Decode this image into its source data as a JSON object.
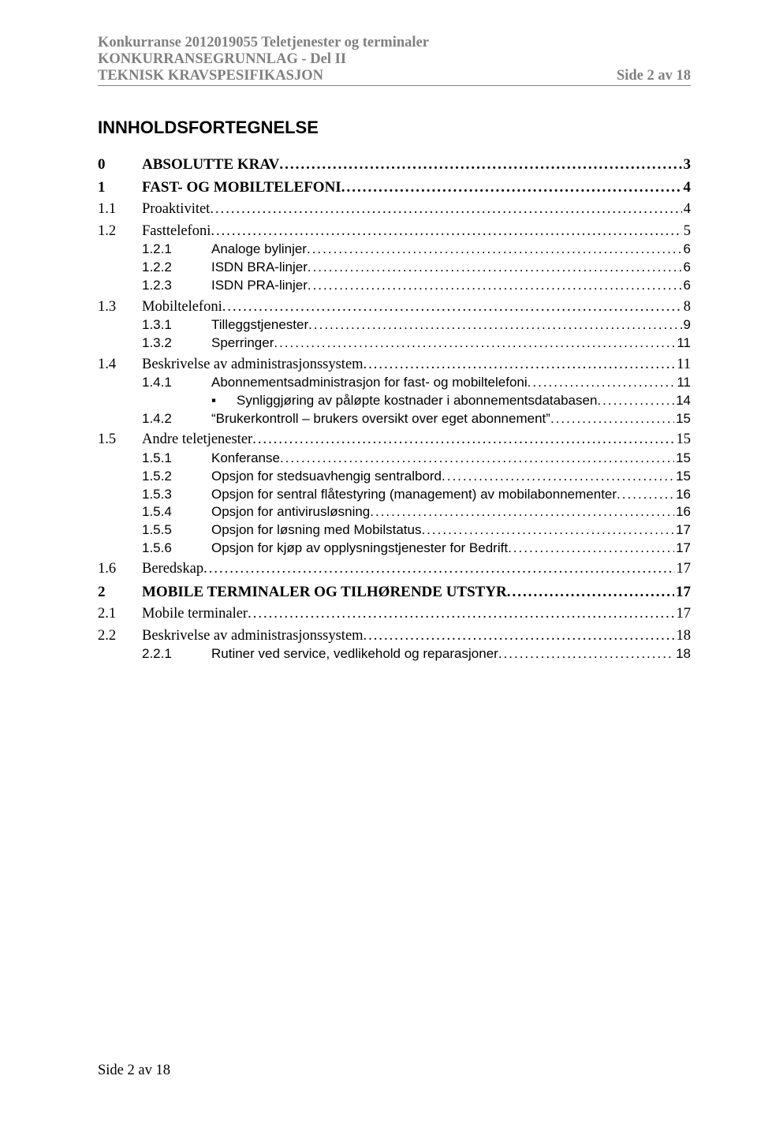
{
  "header": {
    "line1": "Konkurranse 2012019055 Teletjenester og terminaler",
    "line2": "KONKURRANSEGRUNNLAG - Del II",
    "line3": "TEKNISK KRAVSPESIFIKASJON",
    "page_label": "Side 2 av 18"
  },
  "title": "INNHOLDSFORTEGNELSE",
  "toc": [
    {
      "level": 0,
      "num": "0",
      "text": "ABSOLUTTE KRAV",
      "page": "3"
    },
    {
      "level": 0,
      "num": "1",
      "text": "FAST- OG MOBILTELEFONI",
      "page": "4"
    },
    {
      "level": 1,
      "num": "1.1",
      "text": "Proaktivitet",
      "page": "4"
    },
    {
      "level": 1,
      "num": "1.2",
      "text": "Fasttelefoni",
      "page": "5"
    },
    {
      "level": 2,
      "num": "1.2.1",
      "text": "Analoge bylinjer",
      "page": "6"
    },
    {
      "level": 2,
      "num": "1.2.2",
      "text": "ISDN BRA-linjer",
      "page": "6"
    },
    {
      "level": 2,
      "num": "1.2.3",
      "text": "ISDN PRA-linjer",
      "page": "6"
    },
    {
      "level": 1,
      "num": "1.3",
      "text": "Mobiltelefoni",
      "page": "8"
    },
    {
      "level": 2,
      "num": "1.3.1",
      "text": "Tilleggstjenester",
      "page": "9"
    },
    {
      "level": 2,
      "num": "1.3.2",
      "text": "Sperringer",
      "page": "11"
    },
    {
      "level": 1,
      "num": "1.4",
      "text": "Beskrivelse av administrasjonssystem",
      "page": "11"
    },
    {
      "level": 2,
      "num": "1.4.1",
      "text": "Abonnementsadministrasjon for fast- og mobiltelefoni",
      "page": "11"
    },
    {
      "level": 3,
      "num": "▪",
      "text": "Synliggjøring av påløpte kostnader i abonnementsdatabasen",
      "page": "14"
    },
    {
      "level": 2,
      "num": "1.4.2",
      "text": "“Brukerkontroll – brukers oversikt over eget abonnement”",
      "page": "15"
    },
    {
      "level": 1,
      "num": "1.5",
      "text": "Andre teletjenester",
      "page": "15"
    },
    {
      "level": 2,
      "num": "1.5.1",
      "text": "Konferanse",
      "page": "15"
    },
    {
      "level": 2,
      "num": "1.5.2",
      "text": "Opsjon for stedsuavhengig sentralbord",
      "page": "15"
    },
    {
      "level": 2,
      "num": "1.5.3",
      "text": "Opsjon for sentral flåtestyring (management) av mobilabonnementer",
      "page": "16"
    },
    {
      "level": 2,
      "num": "1.5.4",
      "text": "Opsjon for antivirusløsning",
      "page": "16"
    },
    {
      "level": 2,
      "num": "1.5.5",
      "text": "Opsjon for løsning med Mobilstatus",
      "page": "17"
    },
    {
      "level": 2,
      "num": "1.5.6",
      "text": "Opsjon for kjøp av opplysningstjenester for Bedrift",
      "page": "17"
    },
    {
      "level": 1,
      "num": "1.6",
      "text": "Beredskap",
      "page": "17"
    },
    {
      "level": 0,
      "num": "2",
      "text": "MOBILE TERMINALER OG TILHØRENDE UTSTYR",
      "page": "17"
    },
    {
      "level": 1,
      "num": "2.1",
      "text": "Mobile terminaler",
      "page": "17"
    },
    {
      "level": 1,
      "num": "2.2",
      "text": "Beskrivelse av administrasjonssystem",
      "page": "18"
    },
    {
      "level": 2,
      "num": "2.2.1",
      "text": "Rutiner ved service, vedlikehold og reparasjoner",
      "page": "18"
    }
  ],
  "footer": "Side 2 av 18"
}
